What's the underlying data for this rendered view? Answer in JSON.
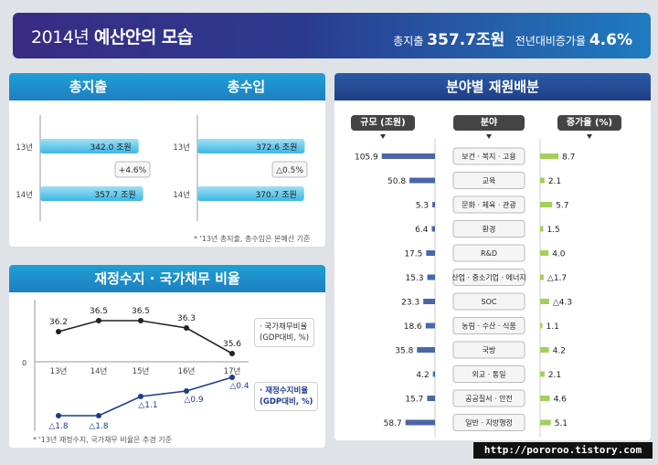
{
  "header": {
    "year": "2014년",
    "title": "예산안의 모습",
    "total_label": "총지출",
    "total_value": "357.7조원",
    "growth_label": "전년대비증가율",
    "growth_value": "4.6%"
  },
  "colors": {
    "light_blue_bar": "#6cc9ea",
    "dark_blue_bar": "#2b4b99",
    "green_bar": "#a4cf5a",
    "line_dark": "#222222",
    "line_blue": "#1f3a8f"
  },
  "spending": {
    "tab": "총지출",
    "note": "",
    "chart_data": {
      "type": "bar",
      "categories": [
        "13년",
        "14년"
      ],
      "values": [
        342.0,
        357.7
      ],
      "value_labels": [
        "342.0 조원",
        "357.7 조원"
      ],
      "change_label": "+4.6%"
    }
  },
  "revenue": {
    "tab": "총수입",
    "note": "* '13년 총지출, 총수입은 본예산 기준",
    "chart_data": {
      "type": "bar",
      "categories": [
        "13년",
        "14년"
      ],
      "values": [
        372.6,
        370.7
      ],
      "value_labels": [
        "372.6 조원",
        "370.7 조원"
      ],
      "change_label": "△0.5%"
    }
  },
  "fiscal": {
    "tab": "재정수지 · 국가채무 비율",
    "zero_label": "0",
    "note": "* '13년 재정수지, 국가채무 비율은 추경 기준",
    "chart_data": {
      "type": "line",
      "x": [
        "13년",
        "14년",
        "15년",
        "16년",
        "17년"
      ],
      "series": [
        {
          "name": "국가채무비율 (GDP대비, %)",
          "values": [
            36.2,
            36.5,
            36.5,
            36.3,
            35.6
          ],
          "labels": [
            "36.2",
            "36.5",
            "36.5",
            "36.3",
            "35.6"
          ]
        },
        {
          "name": "재정수지비율 (GDP대비, %)",
          "values": [
            -1.8,
            -1.8,
            -1.1,
            -0.9,
            -0.4
          ],
          "labels": [
            "△1.8",
            "△1.8",
            "△1.1",
            "△0.9",
            "△0.4"
          ]
        }
      ],
      "legend": [
        {
          "line1": "· 국가채무비율",
          "line2": "(GDP대비, %)"
        },
        {
          "line1": "· 재정수지비율",
          "line2": "(GDP대비, %)"
        }
      ]
    }
  },
  "allocation": {
    "tab": "분야별 재원배분",
    "headers": {
      "size": "규모 (조원)",
      "field": "분야",
      "growth": "증가율 (%)"
    },
    "chart_data": {
      "type": "bar",
      "categories": [
        "보건 · 복지 · 고용",
        "교육",
        "문화 · 체육 · 관광",
        "환경",
        "R&D",
        "산업 · 중소기업 · 에너지",
        "SOC",
        "농림 · 수산 · 식품",
        "국방",
        "외교 · 통일",
        "공공질서 · 안전",
        "일반 · 지방행정"
      ],
      "series": [
        {
          "name": "규모 (조원)",
          "values": [
            105.9,
            50.8,
            5.3,
            6.4,
            17.5,
            15.3,
            23.3,
            18.6,
            35.8,
            4.2,
            15.7,
            58.7
          ],
          "labels": [
            "105.9",
            "50.8",
            "5.3",
            "6.4",
            "17.5",
            "15.3",
            "23.3",
            "18.6",
            "35.8",
            "4.2",
            "15.7",
            "58.7"
          ]
        },
        {
          "name": "증가율 (%)",
          "values": [
            8.7,
            2.1,
            5.7,
            1.5,
            4.0,
            -1.7,
            -4.3,
            1.1,
            4.2,
            2.1,
            4.6,
            5.1
          ],
          "labels": [
            "8.7",
            "2.1",
            "5.7",
            "1.5",
            "4.0",
            "△1.7",
            "△4.3",
            "1.1",
            "4.2",
            "2.1",
            "4.6",
            "5.1"
          ]
        }
      ]
    }
  },
  "footer": {
    "url": "http://pororoo.tistory.com"
  }
}
